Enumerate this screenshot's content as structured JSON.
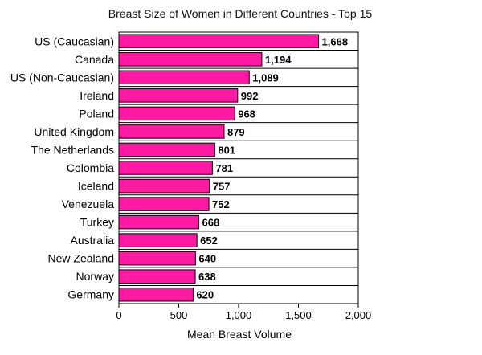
{
  "chart_data": {
    "type": "bar",
    "orientation": "horizontal",
    "title": "Breast Size of Women in Different Countries - Top 15",
    "xlabel": "Mean Breast Volume",
    "ylabel": "",
    "xlim": [
      0,
      2000
    ],
    "x_ticks": [
      0,
      500,
      1000,
      1500,
      2000
    ],
    "x_tick_labels": [
      "0",
      "500",
      "1,000",
      "1,500",
      "2,000"
    ],
    "grid": "horizontal row lines",
    "bar_color": "#ff1aa3",
    "categories": [
      "US (Caucasian)",
      "Canada",
      "US (Non-Caucasian)",
      "Ireland",
      "Poland",
      "United Kingdom",
      "The Netherlands",
      "Colombia",
      "Iceland",
      "Venezuela",
      "Turkey",
      "Australia",
      "New Zealand",
      "Norway",
      "Germany"
    ],
    "values": [
      1668,
      1194,
      1089,
      992,
      968,
      879,
      801,
      781,
      757,
      752,
      668,
      652,
      640,
      638,
      620
    ],
    "value_labels": [
      "1,668",
      "1,194",
      "1,089",
      "992",
      "968",
      "879",
      "801",
      "781",
      "757",
      "752",
      "668",
      "652",
      "640",
      "638",
      "620"
    ]
  }
}
